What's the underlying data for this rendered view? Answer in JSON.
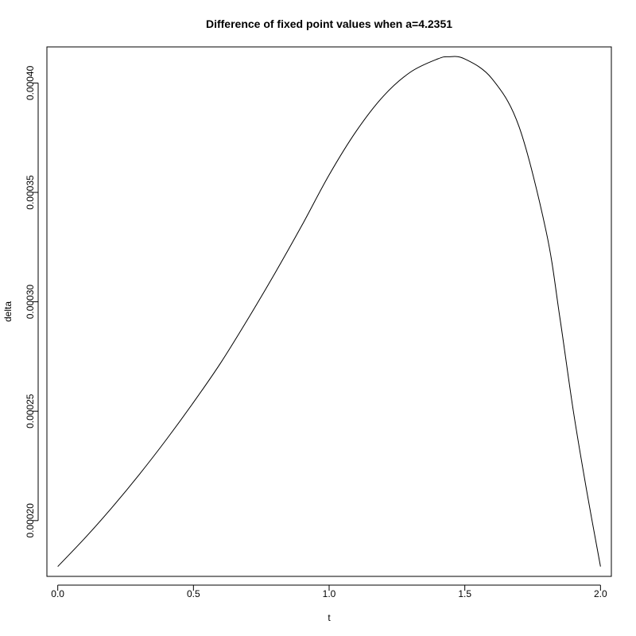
{
  "chart_data": {
    "type": "line",
    "title": "Difference of fixed point values when a=4.2351",
    "xlabel": "t",
    "ylabel": "delta",
    "xlim": [
      -0.04,
      2.04
    ],
    "ylim": [
      0.0001745,
      0.0004165
    ],
    "x_ticks": [
      0.0,
      0.5,
      1.0,
      1.5,
      2.0
    ],
    "x_tick_labels": [
      "0.0",
      "0.5",
      "1.0",
      "1.5",
      "2.0"
    ],
    "y_ticks": [
      0.0002,
      0.00025,
      0.0003,
      0.00035,
      0.0004
    ],
    "y_tick_labels": [
      "0.00020",
      "0.00025",
      "0.00030",
      "0.00035",
      "0.00040"
    ],
    "grid": false,
    "legend": "none",
    "series": [
      {
        "color": "#000000",
        "x": [
          0.0,
          0.1,
          0.2,
          0.3,
          0.4,
          0.5,
          0.6,
          0.7,
          0.8,
          0.9,
          1.0,
          1.1,
          1.2,
          1.3,
          1.4,
          1.44,
          1.5,
          1.6,
          1.7,
          1.8,
          1.85,
          1.9,
          1.95,
          2.0
        ],
        "y": [
          0.000179,
          0.000192,
          0.000206,
          0.000221,
          0.000237,
          0.000254,
          0.000272,
          0.000292,
          0.000313,
          0.000335,
          0.000358,
          0.000378,
          0.000394,
          0.000405,
          0.000411,
          0.000412,
          0.000411,
          0.000402,
          0.00038,
          0.000332,
          0.000293,
          0.00025,
          0.000213,
          0.000179
        ]
      }
    ]
  }
}
